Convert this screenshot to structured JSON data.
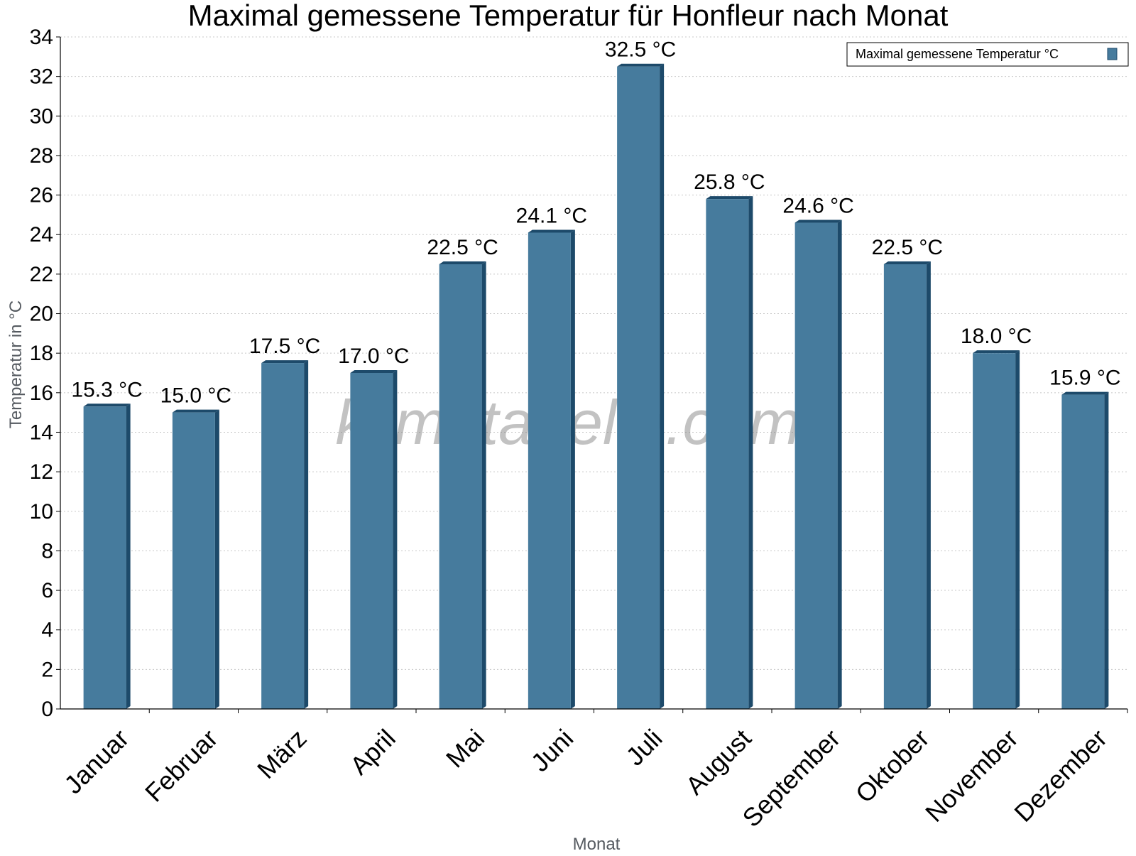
{
  "chart_data": {
    "type": "bar",
    "title": "Maximal gemessene Temperatur für Honfleur nach Monat",
    "xlabel": "Monat",
    "ylabel": "Temperatur in °C",
    "categories": [
      "Januar",
      "Februar",
      "März",
      "April",
      "Mai",
      "Juni",
      "Juli",
      "August",
      "September",
      "Oktober",
      "November",
      "Dezember"
    ],
    "series": [
      {
        "name": "Maximal gemessene Temperatur °C",
        "values": [
          15.3,
          15.0,
          17.5,
          17.0,
          22.5,
          24.1,
          32.5,
          25.8,
          24.6,
          22.5,
          18.0,
          15.9
        ],
        "value_labels": [
          "15.3 °C",
          "15.0 °C",
          "17.5 °C",
          "17.0 °C",
          "22.5 °C",
          "24.1 °C",
          "32.5 °C",
          "25.8 °C",
          "24.6 °C",
          "22.5 °C",
          "18.0 °C",
          "15.9 °C"
        ]
      }
    ],
    "ylim": [
      0,
      34
    ],
    "yticks": [
      0,
      2,
      4,
      6,
      8,
      10,
      12,
      14,
      16,
      18,
      20,
      22,
      24,
      26,
      28,
      30,
      32,
      34
    ],
    "grid": true,
    "legend_position": "top-right",
    "colors": {
      "bar": "#467b9d",
      "bar_side": "#1d4a6a",
      "grid": "#c8c8c8"
    }
  },
  "watermark": "klimatabelle.com"
}
